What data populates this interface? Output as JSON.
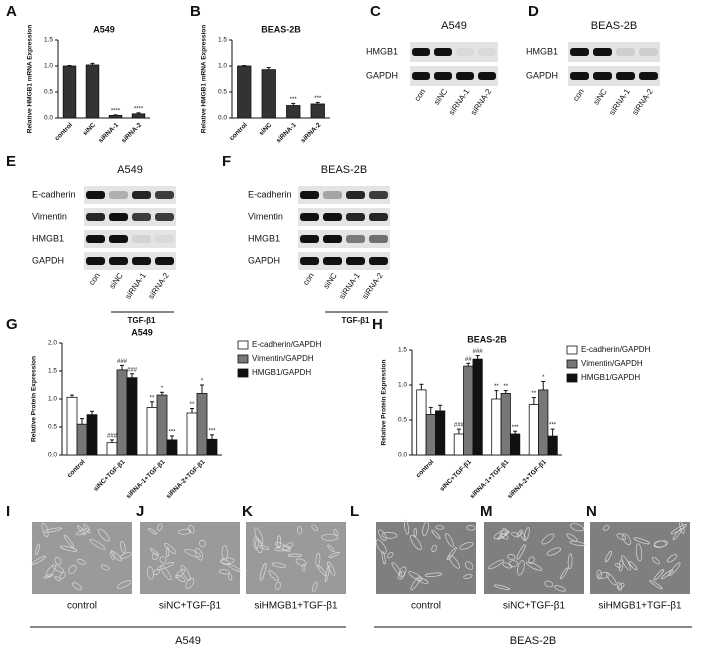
{
  "chart_data": [
    {
      "panel": "A",
      "type": "bar",
      "title": "A549",
      "ylabel": "Relative HMGB1 mRNA Expression",
      "categories": [
        "control",
        "siNC",
        "siRNA-1",
        "siRNA-2"
      ],
      "values": [
        1.0,
        1.02,
        0.05,
        0.08
      ],
      "errors": [
        0.01,
        0.03,
        0.01,
        0.02
      ],
      "annotations": [
        null,
        null,
        "****",
        "****"
      ],
      "color": "#333333",
      "ylim": [
        0,
        1.5
      ],
      "yticks": [
        {
          "value": 0,
          "label": "0.0"
        },
        0.5,
        {
          "value": 1,
          "label": "1.0"
        },
        1.5
      ]
    },
    {
      "panel": "B",
      "type": "bar",
      "title": "BEAS-2B",
      "ylabel": "Relative HMGB1 mRNA Expression",
      "categories": [
        "control",
        "siNC",
        "siRNA-1",
        "siRNA-2"
      ],
      "values": [
        1.0,
        0.93,
        0.24,
        0.27
      ],
      "errors": [
        0.01,
        0.04,
        0.04,
        0.03
      ],
      "annotations": [
        null,
        null,
        "***",
        "***"
      ],
      "color": "#333333",
      "ylim": [
        0,
        1.5
      ],
      "yticks": [
        {
          "value": 0,
          "label": "0.0"
        },
        0.5,
        {
          "value": 1,
          "label": "1.0"
        },
        1.5
      ]
    },
    {
      "panel": "G",
      "type": "bar",
      "title": "A549",
      "ylabel": "Relative Protein Expression",
      "categories": [
        "control",
        "siNC+TGF-β1",
        "siRNA-1+TGF-β1",
        "siRNA-2+TGF-β1"
      ],
      "series": [
        {
          "name": "E-cadherin/GAPDH",
          "color": "#ffffff",
          "values": [
            1.03,
            0.22,
            0.85,
            0.75
          ],
          "errors": [
            0.04,
            0.05,
            0.1,
            0.08
          ],
          "annotations": [
            null,
            "###",
            "**",
            "**"
          ]
        },
        {
          "name": "Vimentin/GAPDH",
          "color": "#777777",
          "values": [
            0.55,
            1.52,
            1.07,
            1.1
          ],
          "errors": [
            0.1,
            0.08,
            0.05,
            0.15
          ],
          "annotations": [
            null,
            "###",
            "*",
            "*"
          ]
        },
        {
          "name": "HMGB1/GAPDH",
          "color": "#111111",
          "values": [
            0.72,
            1.38,
            0.27,
            0.28
          ],
          "errors": [
            0.06,
            0.07,
            0.07,
            0.08
          ],
          "annotations": [
            null,
            "###",
            "***",
            "***"
          ]
        }
      ],
      "ylim": [
        0,
        2
      ],
      "yticks": [
        {
          "value": 0,
          "label": "0.0"
        },
        0.5,
        {
          "value": 1,
          "label": "1.0"
        },
        1.5,
        {
          "value": 2,
          "label": "2.0"
        }
      ]
    },
    {
      "panel": "H",
      "type": "bar",
      "title": "BEAS-2B",
      "ylabel": "Relative Protein Expression",
      "categories": [
        "control",
        "siNC+TGF-β1",
        "siRNA-1+TGF-β1",
        "siRNA-2+TGF-β1"
      ],
      "series": [
        {
          "name": "E-cadherin/GAPDH",
          "color": "#ffffff",
          "values": [
            0.93,
            0.3,
            0.8,
            0.72
          ],
          "errors": [
            0.08,
            0.07,
            0.12,
            0.1
          ],
          "annotations": [
            null,
            "###",
            "**",
            "**"
          ]
        },
        {
          "name": "Vimentin/GAPDH",
          "color": "#777777",
          "values": [
            0.58,
            1.27,
            0.88,
            0.93
          ],
          "errors": [
            0.1,
            0.04,
            0.04,
            0.12
          ],
          "annotations": [
            null,
            "##",
            "**",
            "*"
          ]
        },
        {
          "name": "HMGB1/GAPDH",
          "color": "#111111",
          "values": [
            0.63,
            1.37,
            0.3,
            0.27
          ],
          "errors": [
            0.08,
            0.05,
            0.04,
            0.1
          ],
          "annotations": [
            null,
            "###",
            "***",
            "***"
          ]
        }
      ],
      "ylim": [
        0,
        1.5
      ],
      "yticks": [
        {
          "value": 0,
          "label": "0.0"
        },
        0.5,
        {
          "value": 1,
          "label": "1.0"
        },
        1.5
      ]
    }
  ],
  "blots": [
    {
      "panel": "C",
      "title": "A549",
      "rows": [
        "HMGB1",
        "GAPDH"
      ],
      "lanes": [
        "con",
        "siNC",
        "siRNA-1",
        "siRNA-2"
      ]
    },
    {
      "panel": "D",
      "title": "BEAS-2B",
      "rows": [
        "HMGB1",
        "GAPDH"
      ],
      "lanes": [
        "con",
        "siNC",
        "siRNA-1",
        "siRNA-2"
      ]
    },
    {
      "panel": "E",
      "title": "A549",
      "rows": [
        "E-cadherin",
        "Vimentin",
        "HMGB1",
        "GAPDH"
      ],
      "lanes": [
        "con",
        "siNC",
        "siRNA-1",
        "siRNA-2"
      ],
      "group": "TGF-β1"
    },
    {
      "panel": "F",
      "title": "BEAS-2B",
      "rows": [
        "E-cadherin",
        "Vimentin",
        "HMGB1",
        "GAPDH"
      ],
      "lanes": [
        "con",
        "siNC",
        "siRNA-1",
        "siRNA-2"
      ],
      "group": "TGF-β1"
    }
  ],
  "micrographs": {
    "panels": [
      {
        "panel": "I",
        "caption": "control"
      },
      {
        "panel": "J",
        "caption": "siNC+TGF-β1"
      },
      {
        "panel": "K",
        "caption": "siHMGB1+TGF-β1"
      },
      {
        "panel": "L",
        "caption": "control"
      },
      {
        "panel": "M",
        "caption": "siNC+TGF-β1"
      },
      {
        "panel": "N",
        "caption": "siHMGB1+TGF-β1"
      }
    ],
    "groups": [
      "A549",
      "BEAS-2B"
    ]
  }
}
